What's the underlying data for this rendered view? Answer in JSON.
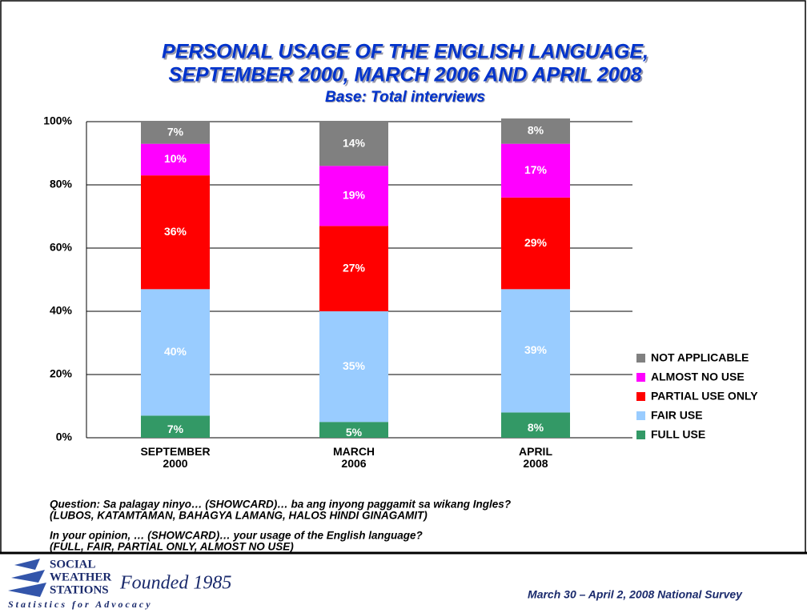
{
  "chart_data": {
    "type": "stacked-bar",
    "title": [
      "PERSONAL USAGE OF THE ENGLISH LANGUAGE,",
      "SEPTEMBER 2000, MARCH 2006 AND APRIL 2008"
    ],
    "subtitle": "Base: Total interviews",
    "categories": [
      "SEPTEMBER 2000",
      "MARCH 2006",
      "APRIL 2008"
    ],
    "series": [
      {
        "name": "FULL USE",
        "color": "#339966",
        "values": [
          7,
          5,
          8
        ],
        "value_labels": [
          "7%",
          "5%",
          "8%"
        ]
      },
      {
        "name": "FAIR USE",
        "color": "#99ccff",
        "values": [
          40,
          35,
          39
        ],
        "value_labels": [
          "40%",
          "35%",
          "39%"
        ]
      },
      {
        "name": "PARTIAL USE ONLY",
        "color": "#ff0000",
        "values": [
          36,
          27,
          29
        ],
        "value_labels": [
          "36%",
          "27%",
          "29%"
        ]
      },
      {
        "name": "ALMOST NO USE",
        "color": "#ff00ff",
        "values": [
          10,
          19,
          17
        ],
        "value_labels": [
          "10%",
          "19%",
          "17%"
        ]
      },
      {
        "name": "NOT APPLICABLE",
        "color": "#808080",
        "values": [
          7,
          14,
          8
        ],
        "value_labels": [
          "7%",
          "14%",
          "8%"
        ]
      }
    ],
    "ylim": [
      0,
      100
    ],
    "yticks": [
      {
        "value": 0,
        "label": "0%"
      },
      {
        "value": 20,
        "label": "20%"
      },
      {
        "value": 40,
        "label": "40%"
      },
      {
        "value": 60,
        "label": "60%"
      },
      {
        "value": 80,
        "label": "80%"
      },
      {
        "value": 100,
        "label": "100%"
      }
    ],
    "grid": true,
    "legend": "right"
  },
  "notes": [
    "Question: Sa palagay ninyo… (SHOWCARD)… ba ang inyong paggamit sa wikang Ingles?",
    "(LUBOS, KATAMTAMAN, BAHAGYA LAMANG, HALOS HINDI GINAGAMIT)",
    "In your opinion, … (SHOWCARD)… your usage of the English language?",
    "(FULL, FAIR, PARTIAL ONLY, ALMOST NO USE)"
  ],
  "footer": {
    "logo": [
      "SOCIAL",
      "WEATHER",
      "STATIONS",
      "Founded 1985",
      "Statistics for Advocacy"
    ],
    "survey": "March 30 – April 2, 2008 National Survey"
  }
}
